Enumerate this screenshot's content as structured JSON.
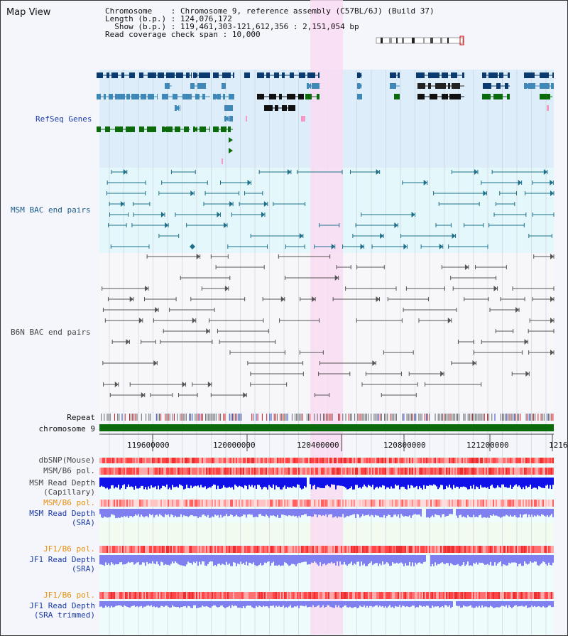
{
  "app": {
    "title": "Map View"
  },
  "header": {
    "chromosome_key": "Chromosome",
    "chromosome_val": "Chromosome 9, reference assembly (C57BL/6J) (Build 37)",
    "length_key": "Length (b.p.)",
    "length_val": "124,076,172",
    "show_key": "Show (b.p.)",
    "show_val": "119,461,303-121,612,356 : 2,151,054 bp",
    "coverage_key": "Read coverage check span",
    "coverage_val": "10,000"
  },
  "tracks": {
    "refseq": "RefSeq Genes",
    "msm_bac": "MSM BAC end pairs",
    "b6n_bac": "B6N BAC end pairs",
    "repeat": "Repeat",
    "chromosome": "chromosome 9",
    "dbsnp": "dbSNP(Mouse)",
    "msm_b6_pol": "MSM/B6 pol.",
    "msm_depth_cap_1": "MSM Read Depth",
    "msm_depth_cap_2": "(Capillary)",
    "msm_b6_pol_2": "MSM/B6 pol.",
    "msm_depth_sra_1": "MSM Read Depth",
    "msm_depth_sra_2": "(SRA)",
    "jf1_b6_pol": "JF1/B6 pol.",
    "jf1_depth_sra_1": "JF1 Read Depth",
    "jf1_depth_sra_2": "(SRA)",
    "jf1_b6_pol_2": "JF1/B6 pol.",
    "jf1_depth_trim_1": "JF1 Read Depth",
    "jf1_depth_trim_2": "(SRA trimmed)"
  },
  "axis": {
    "ticks": [
      "119600000",
      "120000000",
      "120400000",
      "120800000",
      "121200000",
      "1216"
    ]
  },
  "colors": {
    "refseq_bg": "#ddeefa",
    "msm_bg": "#e4f8fb",
    "highlight": "#fadcf2",
    "gene_dark": "#0b3a6e",
    "gene_mid": "#3f88b8",
    "gene_green": "#0b6a0b",
    "msm_line": "#1d6f8a",
    "b6n_line": "#555555",
    "depth_blue": "#1010e8",
    "depth_light": "#7f7ff0",
    "label_blue": "#1a3aa8",
    "label_orange": "#e8900a"
  }
}
